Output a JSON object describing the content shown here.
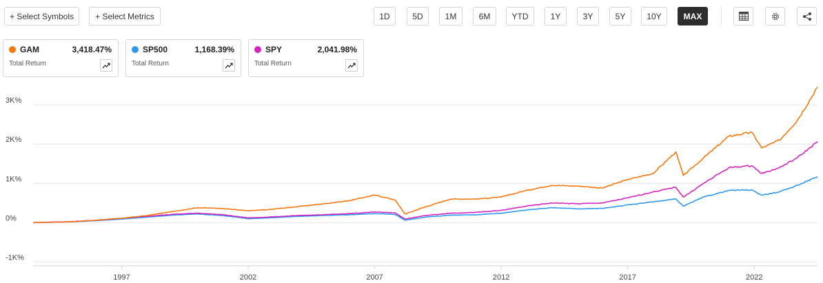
{
  "toolbar": {
    "select_symbols": "+ Select Symbols",
    "select_metrics": "+ Select Metrics",
    "ranges": [
      "1D",
      "5D",
      "1M",
      "6M",
      "YTD",
      "1Y",
      "3Y",
      "5Y",
      "10Y",
      "MAX"
    ],
    "active_range": "MAX"
  },
  "cards": [
    {
      "symbol": "GAM",
      "value": "3,418.47%",
      "metric": "Total Return",
      "color": "#f5780f"
    },
    {
      "symbol": "SP500",
      "value": "1,168.39%",
      "metric": "Total Return",
      "color": "#2c98ee"
    },
    {
      "symbol": "SPY",
      "value": "2,041.98%",
      "metric": "Total Return",
      "color": "#d324c0"
    }
  ],
  "chart_data": {
    "type": "line",
    "title": "",
    "xlabel": "",
    "ylabel": "",
    "x_range": [
      1993.5,
      2024.5
    ],
    "ylim": [
      -1100,
      3600
    ],
    "y_ticks": [
      -1000,
      0,
      1000,
      2000,
      3000
    ],
    "y_tick_labels": [
      "-1K%",
      "0%",
      "1K%",
      "2K%",
      "3K%"
    ],
    "x_ticks": [
      1997,
      2002,
      2007,
      2012,
      2017,
      2022
    ],
    "x_tick_labels": [
      "1997",
      "2002",
      "2007",
      "2012",
      "2017",
      "2022"
    ],
    "grid": "horizontal",
    "legend": "cards-top-left",
    "x": [
      1993.5,
      1995,
      1996,
      1997,
      1998,
      1999,
      2000,
      2001,
      2002,
      2002.8,
      2004,
      2005,
      2006,
      2007,
      2007.8,
      2008.2,
      2009,
      2010,
      2011,
      2012,
      2013,
      2014,
      2015,
      2016,
      2017,
      2018,
      2018.9,
      2019.2,
      2020,
      2021,
      2021.9,
      2022.3,
      2023,
      2023.7,
      2024.5
    ],
    "series": [
      {
        "name": "GAM",
        "color": "#f5780f",
        "values": [
          0,
          20,
          60,
          110,
          180,
          280,
          380,
          360,
          300,
          330,
          410,
          480,
          560,
          700,
          580,
          220,
          400,
          600,
          600,
          650,
          820,
          950,
          930,
          880,
          1100,
          1250,
          1800,
          1200,
          1650,
          2200,
          2300,
          1900,
          2100,
          2600,
          3450
        ]
      },
      {
        "name": "SP500",
        "color": "#2c98ee",
        "values": [
          0,
          20,
          50,
          90,
          140,
          190,
          220,
          180,
          100,
          120,
          160,
          180,
          200,
          230,
          210,
          60,
          140,
          190,
          200,
          240,
          320,
          380,
          350,
          360,
          450,
          530,
          600,
          420,
          650,
          820,
          830,
          700,
          780,
          950,
          1170
        ]
      },
      {
        "name": "SPY",
        "color": "#d324c0",
        "values": [
          0,
          25,
          60,
          110,
          160,
          210,
          240,
          200,
          120,
          140,
          180,
          200,
          230,
          270,
          250,
          90,
          180,
          240,
          260,
          310,
          420,
          500,
          480,
          500,
          630,
          780,
          900,
          650,
          1000,
          1400,
          1450,
          1250,
          1400,
          1650,
          2060
        ]
      }
    ]
  }
}
